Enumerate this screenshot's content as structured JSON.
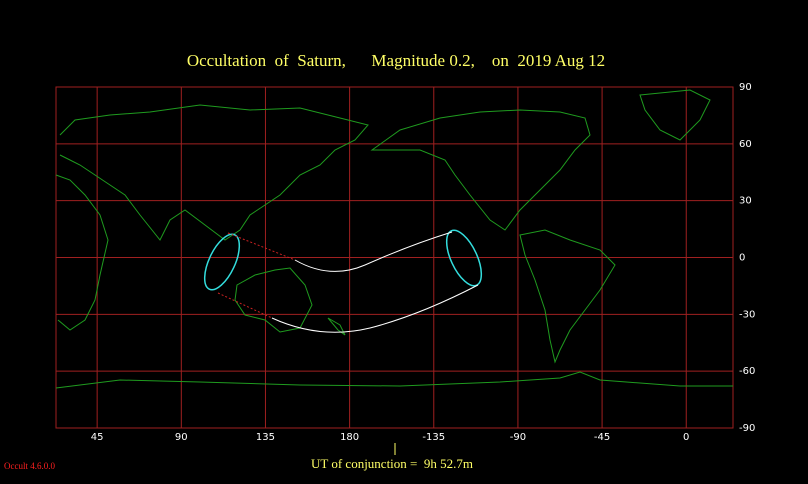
{
  "map": {
    "title": "Occultation  of  Saturn,      Magnitude 0.2,    on  2019 Aug 12",
    "xlim": [
      23,
      385
    ],
    "ylim": [
      -90,
      90
    ],
    "xticks": [
      45,
      90,
      135,
      180,
      {
        "value": 225,
        "label": "-135"
      },
      {
        "value": 270,
        "label": "-90"
      },
      {
        "value": 315,
        "label": "-45"
      },
      {
        "value": 360,
        "label": "0"
      }
    ],
    "yticks": [
      90,
      60,
      30,
      0,
      -30,
      -60,
      -90
    ]
  },
  "footer": {
    "conjunction": "UT of conjunction =  9h 52.7m",
    "version": "Occult 4.6.0.0"
  }
}
